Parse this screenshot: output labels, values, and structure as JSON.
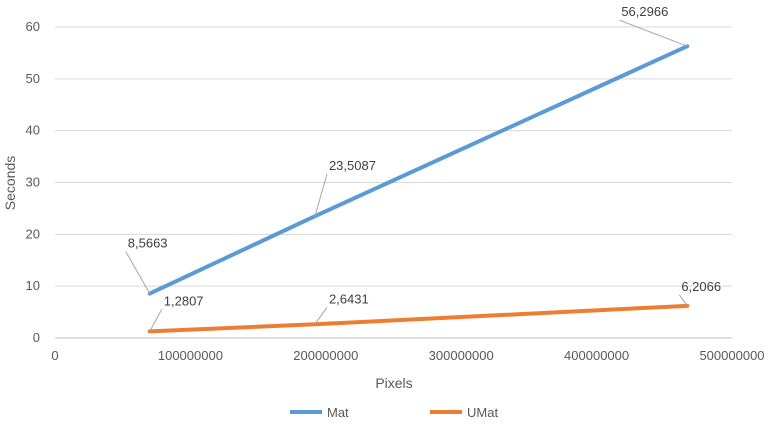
{
  "chart_data": {
    "type": "line",
    "xlabel": "Pixels",
    "ylabel": "Seconds",
    "xlim": [
      0,
      500000000
    ],
    "ylim": [
      0,
      60
    ],
    "x_ticks": [
      "0",
      "100000000",
      "200000000",
      "300000000",
      "400000000",
      "500000000"
    ],
    "y_ticks": [
      "0",
      "10",
      "20",
      "30",
      "40",
      "50",
      "60"
    ],
    "grid": "horizontal",
    "legend_position": "bottom",
    "series": [
      {
        "name": "Mat",
        "color": "#5b9bd5",
        "x": [
          70000000,
          192000000,
          467000000
        ],
        "values": [
          8.5663,
          23.5087,
          56.2966
        ],
        "labels": [
          "8,5663",
          "23,5087",
          "56,2966"
        ]
      },
      {
        "name": "UMat",
        "color": "#ed7d31",
        "x": [
          70000000,
          192000000,
          467000000
        ],
        "values": [
          1.2807,
          2.6431,
          6.2066
        ],
        "labels": [
          "1,2807",
          "2,6431",
          "6,2066"
        ]
      }
    ]
  }
}
